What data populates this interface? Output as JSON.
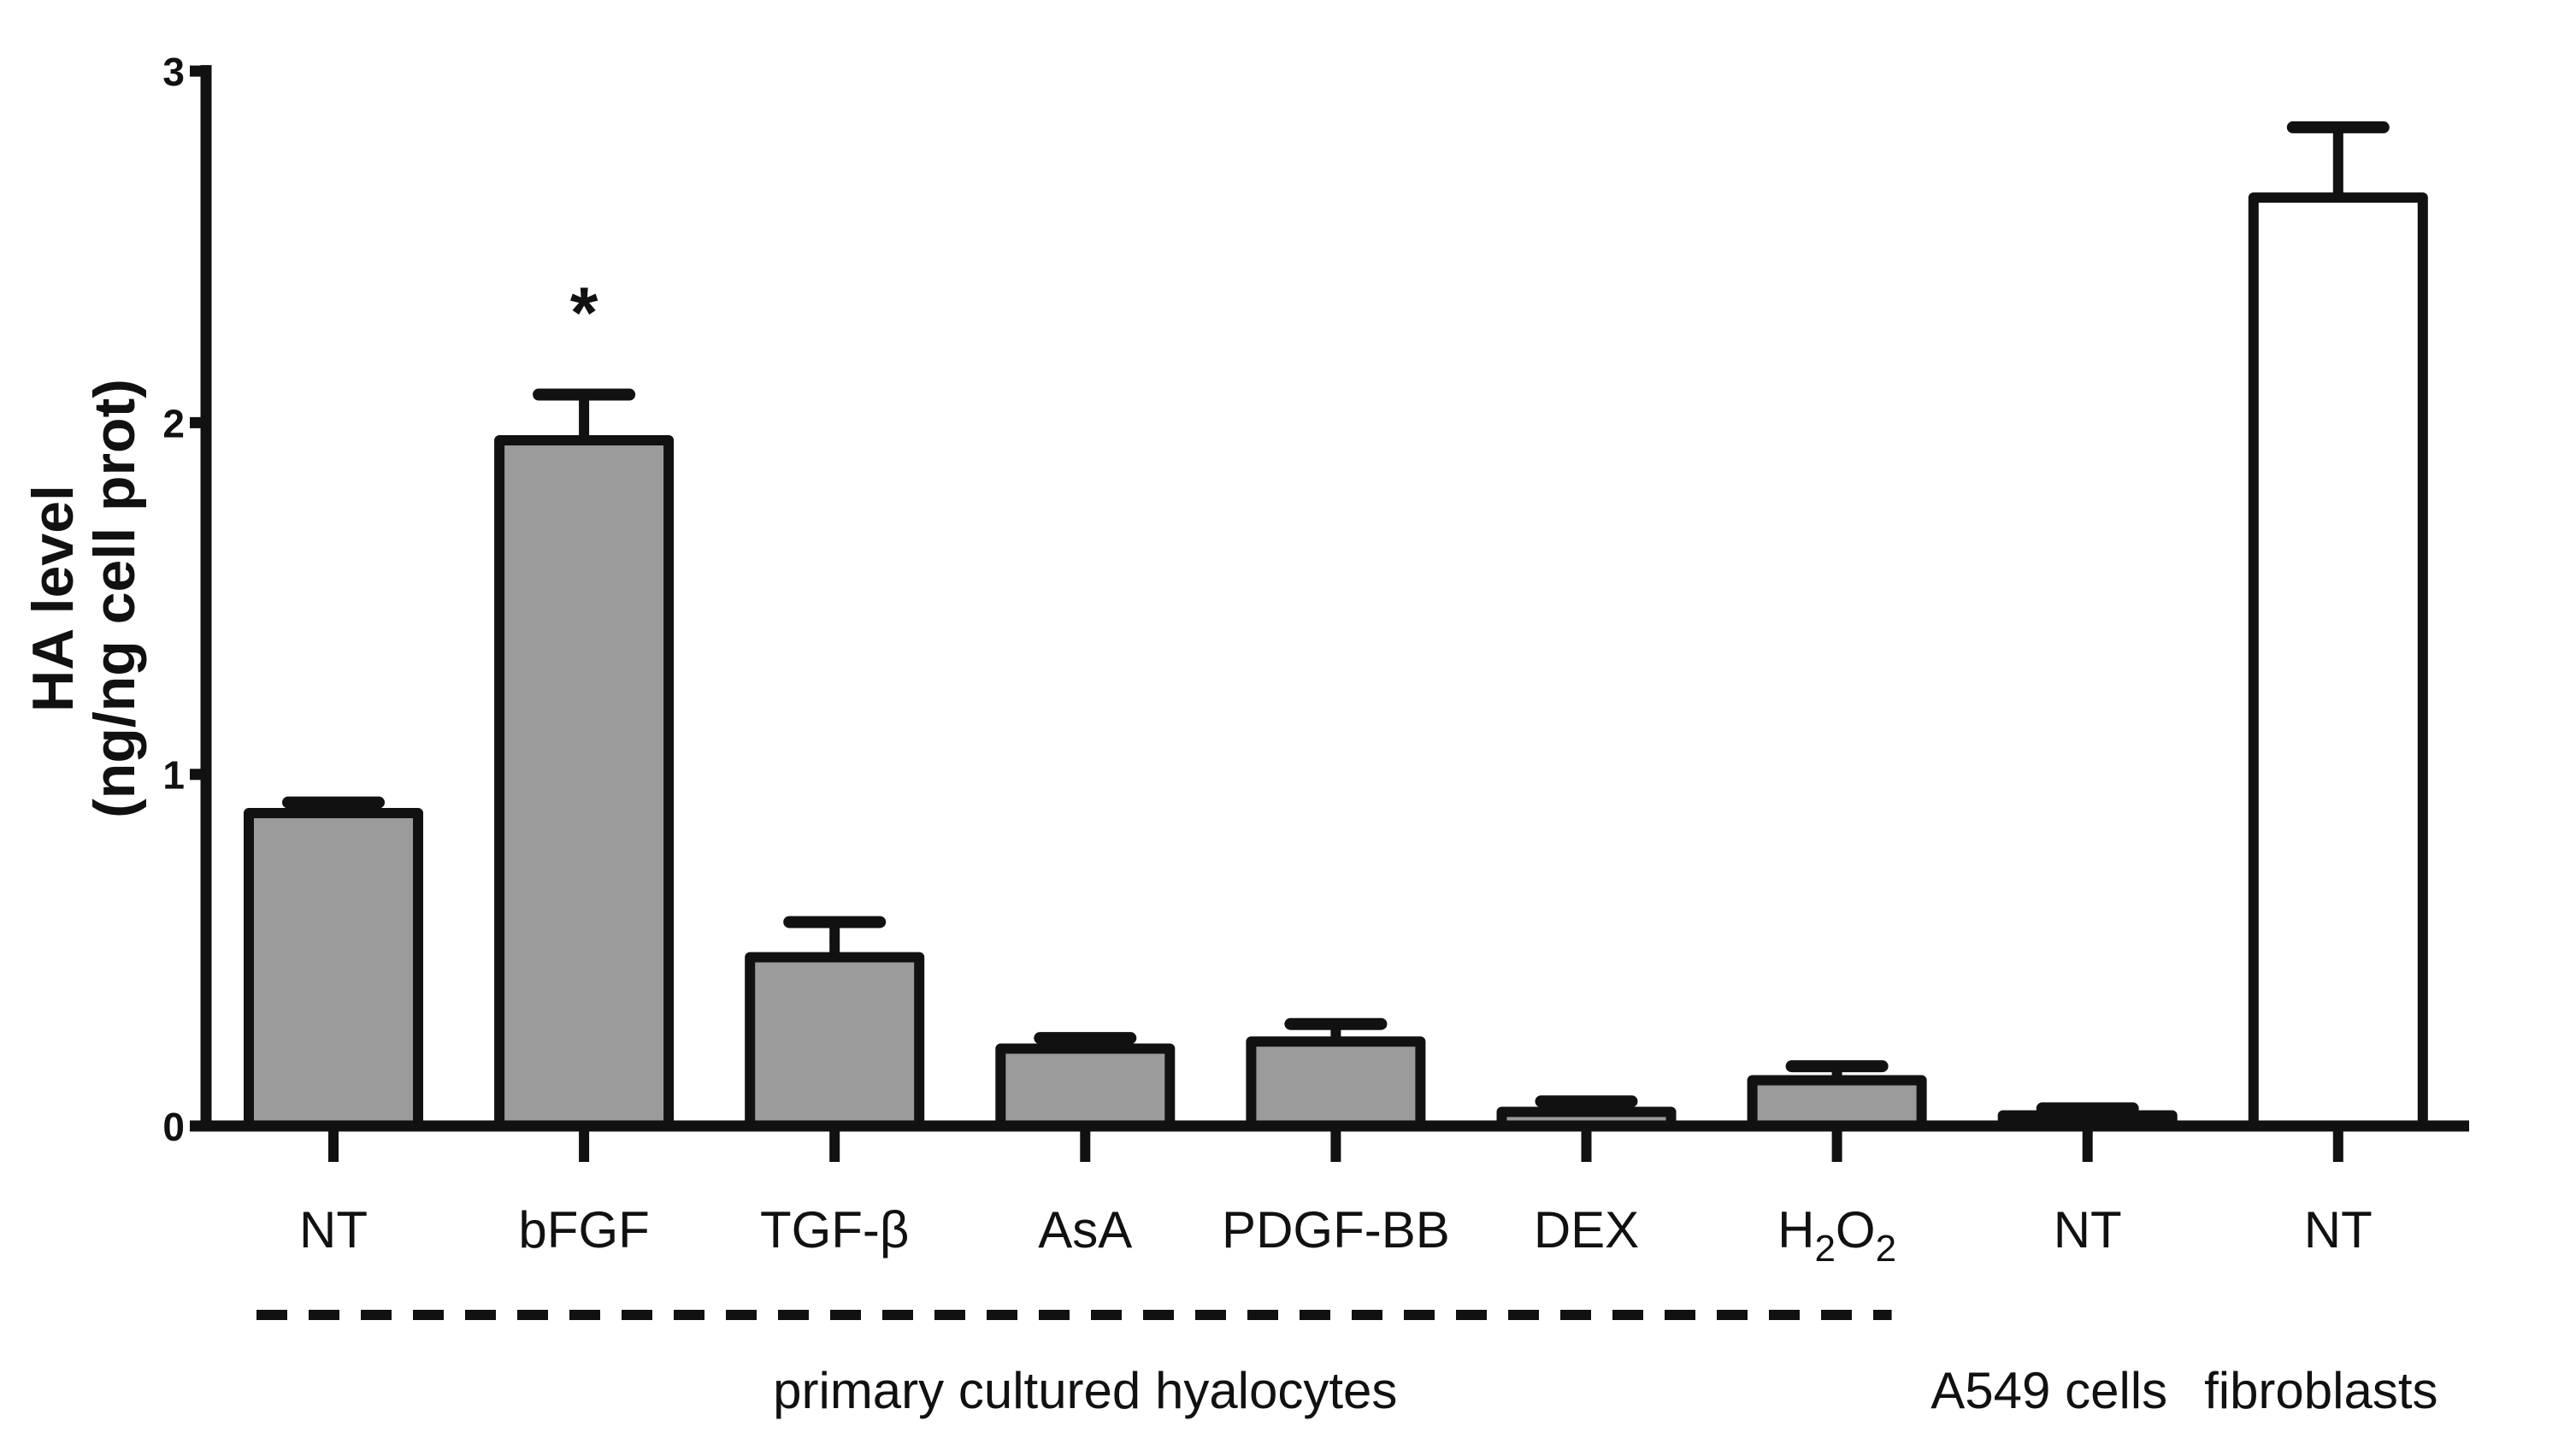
{
  "figure": {
    "background": "#ffffff",
    "ink_color": "#111111"
  },
  "chart_data": {
    "type": "bar",
    "title": "",
    "ylabel_lines": [
      "HA level",
      "(ng/ng cell prot)"
    ],
    "xlabel": "",
    "ylim": [
      0,
      3
    ],
    "yticks": [
      "0",
      "1",
      "2",
      "3"
    ],
    "grid": false,
    "legend": null,
    "categories": [
      {
        "label": "NT"
      },
      {
        "label": "bFGF"
      },
      {
        "label": "TGF-β"
      },
      {
        "label": "AsA"
      },
      {
        "label": "PDGF-BB"
      },
      {
        "label": "DEX"
      },
      {
        "label": "H2O2",
        "parts": [
          {
            "t": "H"
          },
          {
            "t": "2",
            "sub": true
          },
          {
            "t": "O"
          },
          {
            "t": "2",
            "sub": true
          }
        ]
      },
      {
        "label": "NT"
      },
      {
        "label": "NT"
      }
    ],
    "series": [
      {
        "name": "HA level (ng/ng cell prot)",
        "values": [
          0.89,
          1.95,
          0.48,
          0.22,
          0.24,
          0.04,
          0.13,
          0.03,
          2.64
        ],
        "errors": [
          0.03,
          0.13,
          0.1,
          0.03,
          0.05,
          0.03,
          0.04,
          0.02,
          0.2
        ]
      }
    ],
    "bar_fills": [
      "#9B9B9B",
      "#9B9B9B",
      "#9B9B9B",
      "#9B9B9B",
      "#9B9B9B",
      "#9B9B9B",
      "#9B9B9B",
      "#161616",
      "#FFFFFF"
    ],
    "bar_edge_color": "#111111",
    "error_bar_color": "#111111",
    "annotations": [
      {
        "label": "*",
        "category_index": 1,
        "position": "above-error-bar"
      }
    ],
    "groups": [
      {
        "label": "primary cultured hyalocytes",
        "start": 0,
        "end": 6,
        "separator": "dashed-underline"
      },
      {
        "label": "A549 cells",
        "start": 7,
        "end": 7,
        "separator": null
      },
      {
        "label": "fibroblasts",
        "start": 8,
        "end": 8,
        "separator": null
      }
    ]
  }
}
